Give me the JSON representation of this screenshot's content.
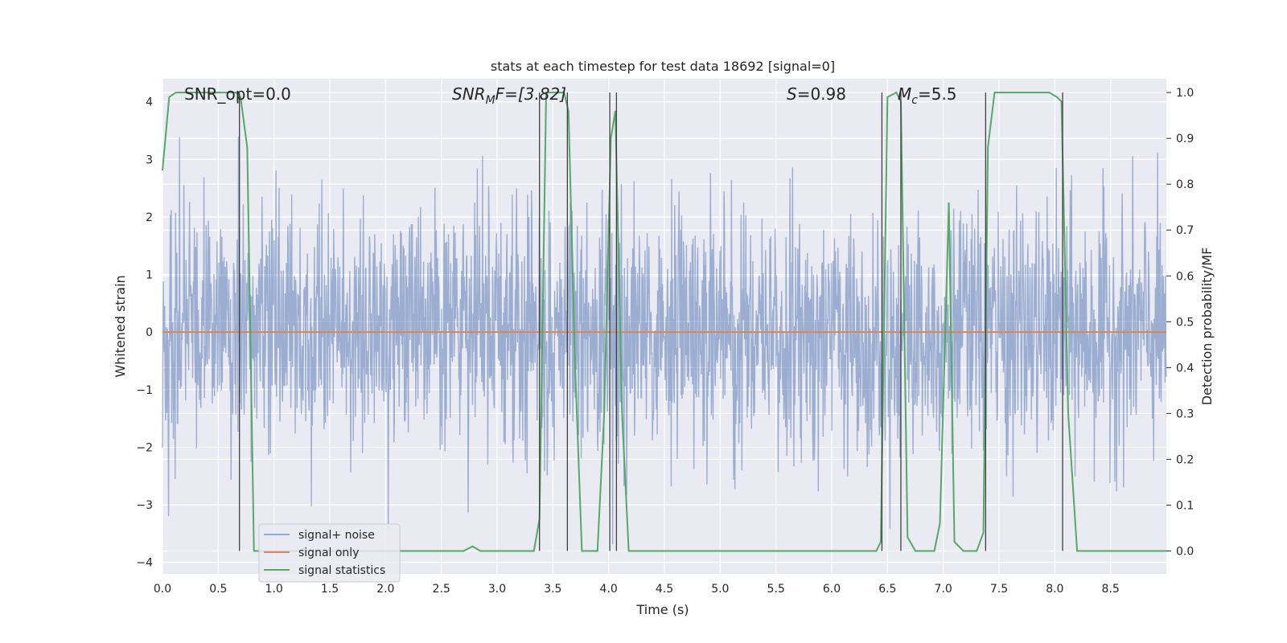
{
  "chart_data": {
    "type": "line",
    "title": "stats at each timestep for test data 18692 [signal=0]",
    "xlabel": "Time (s)",
    "ylabel": "Whitened strain",
    "y2label": "Detection probability/MF",
    "xlim": [
      0.0,
      9.0
    ],
    "ylim": [
      -4.2,
      4.4
    ],
    "y2lim": [
      -0.05,
      1.03
    ],
    "xticks": [
      "0.0",
      "0.5",
      "1.0",
      "1.5",
      "2.0",
      "2.5",
      "3.0",
      "3.5",
      "4.0",
      "4.5",
      "5.0",
      "5.5",
      "6.0",
      "6.5",
      "7.0",
      "7.5",
      "8.0",
      "8.5"
    ],
    "yticks": [
      "4",
      "3",
      "2",
      "1",
      "0",
      "−1",
      "−2",
      "−3",
      "−4"
    ],
    "y2ticks": [
      "1.0",
      "0.9",
      "0.8",
      "0.7",
      "0.6",
      "0.5",
      "0.4",
      "0.3",
      "0.2",
      "0.1",
      "0.0"
    ],
    "grid": true,
    "legend_position": "lower-left",
    "annotations": {
      "snr_opt": "SNR_opt=0.0",
      "snr_mf_base": "SNR",
      "snr_mf_sub": "M",
      "snr_mf_rest": "F=[3.82]",
      "s_var": "S",
      "s_rest": "=0.98",
      "mc_var": "M",
      "mc_sub": "c",
      "mc_rest": "=5.5"
    },
    "series": [
      {
        "name": "signal+ noise",
        "color": "#4c72b0",
        "axis": "left",
        "style": "dense Gaussian noise around 0, roughly between -3.5 and 4"
      },
      {
        "name": "signal only",
        "color": "#dd8452",
        "axis": "left",
        "x": [
          0.0,
          9.0
        ],
        "y": [
          0.0,
          0.0
        ]
      },
      {
        "name": "signal statistics",
        "color": "#55a868",
        "axis": "right",
        "x": [
          0.0,
          0.06,
          0.12,
          0.3,
          0.5,
          0.66,
          0.7,
          0.76,
          0.82,
          1.0,
          2.0,
          2.7,
          2.78,
          2.85,
          2.95,
          3.2,
          3.33,
          3.38,
          3.44,
          3.5,
          3.6,
          3.64,
          3.7,
          3.76,
          3.9,
          3.96,
          4.02,
          4.06,
          4.12,
          4.18,
          5.0,
          6.0,
          6.4,
          6.44,
          6.5,
          6.58,
          6.62,
          6.68,
          6.75,
          6.92,
          6.97,
          7.05,
          7.1,
          7.18,
          7.3,
          7.36,
          7.4,
          7.46,
          7.6,
          7.95,
          8.02,
          8.06,
          8.12,
          8.2,
          8.4,
          9.0
        ],
        "y": [
          0.83,
          0.99,
          1.0,
          1.0,
          1.0,
          1.0,
          0.99,
          0.88,
          0.0,
          0.0,
          0.0,
          0.0,
          0.01,
          0.0,
          0.0,
          0.0,
          0.0,
          0.07,
          1.0,
          1.0,
          1.0,
          0.96,
          0.4,
          0.0,
          0.0,
          0.3,
          0.9,
          0.96,
          0.3,
          0.0,
          0.0,
          0.0,
          0.0,
          0.02,
          0.99,
          1.0,
          0.98,
          0.03,
          0.0,
          0.0,
          0.06,
          0.76,
          0.02,
          0.0,
          0.0,
          0.04,
          0.88,
          1.0,
          1.0,
          1.0,
          0.99,
          0.98,
          0.3,
          0.0,
          0.0,
          0.0
        ]
      }
    ],
    "vlines_x": [
      0.69,
      3.38,
      3.63,
      4.01,
      4.07,
      6.45,
      6.62,
      7.38,
      8.07
    ]
  }
}
